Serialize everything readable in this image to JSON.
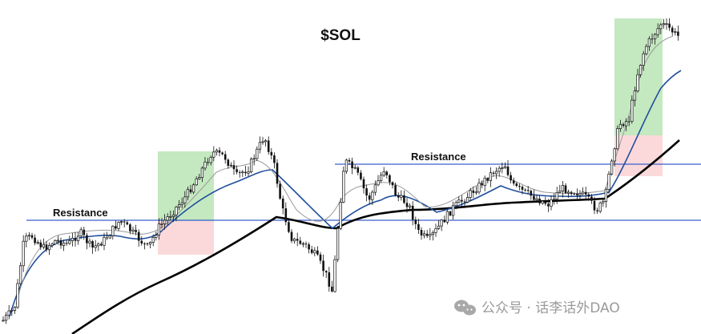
{
  "chart_data": {
    "type": "candlestick",
    "title": "$SOL",
    "annotations": [
      "Resistance",
      "Resistance"
    ],
    "grid": false,
    "legend": "none",
    "colors": {
      "candle": "#111111",
      "ma_fast": "#999999",
      "ma_mid": "#1f4e9c",
      "ma_slow": "#000000",
      "resistance": "#3a5fcd",
      "target_zone": "#93d58d",
      "stop_zone": "#f7b9bd"
    },
    "watermark": "公众号 · 话李话外DAO"
  }
}
